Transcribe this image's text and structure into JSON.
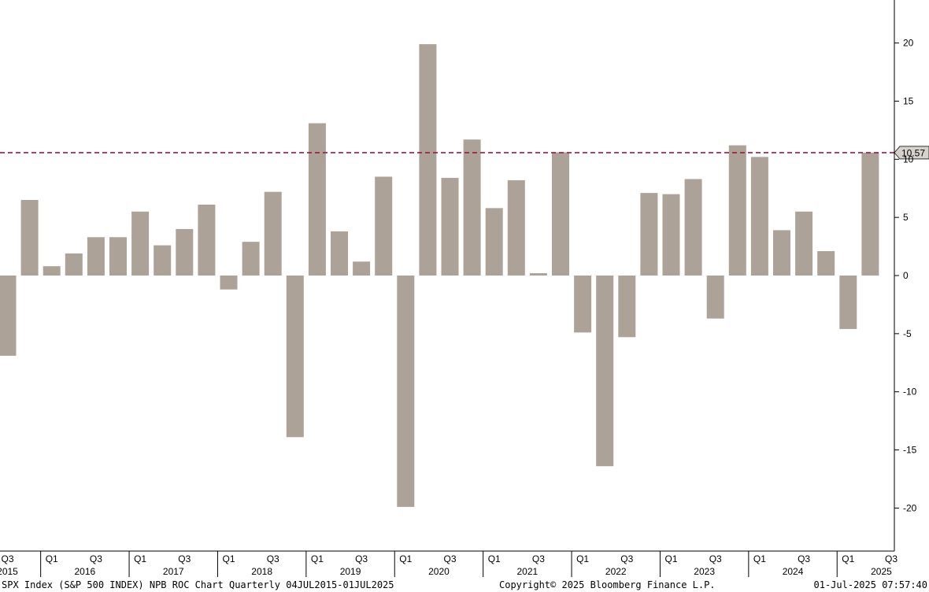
{
  "chart_data": {
    "type": "bar",
    "categories": [
      "Q3 2015",
      "Q4 2015",
      "Q1 2016",
      "Q2 2016",
      "Q3 2016",
      "Q4 2016",
      "Q1 2017",
      "Q2 2017",
      "Q3 2017",
      "Q4 2017",
      "Q1 2018",
      "Q2 2018",
      "Q3 2018",
      "Q4 2018",
      "Q1 2019",
      "Q2 2019",
      "Q3 2019",
      "Q4 2019",
      "Q1 2020",
      "Q2 2020",
      "Q3 2020",
      "Q4 2020",
      "Q1 2021",
      "Q2 2021",
      "Q3 2021",
      "Q4 2021",
      "Q1 2022",
      "Q2 2022",
      "Q3 2022",
      "Q4 2022",
      "Q1 2023",
      "Q2 2023",
      "Q3 2023",
      "Q4 2023",
      "Q1 2024",
      "Q2 2024",
      "Q3 2024",
      "Q4 2024",
      "Q1 2025",
      "Q2 2025"
    ],
    "values": [
      -6.9,
      6.5,
      0.8,
      1.9,
      3.3,
      3.3,
      5.5,
      2.6,
      4.0,
      6.1,
      -1.2,
      2.9,
      7.2,
      -13.9,
      13.1,
      3.8,
      1.2,
      8.5,
      -19.9,
      19.9,
      8.4,
      11.7,
      5.8,
      8.2,
      0.2,
      10.6,
      -4.9,
      -16.4,
      -5.3,
      7.1,
      7.0,
      8.3,
      -3.7,
      11.2,
      10.2,
      3.9,
      5.5,
      2.1,
      -4.6,
      10.57
    ],
    "bar_color": "#ACA297",
    "reference_line": {
      "value": 10.57,
      "label": "10.57",
      "color": "#A0183E"
    },
    "ylim": [
      -23.7,
      23.7
    ],
    "y_ticks": [
      -20,
      -15,
      -10,
      -5,
      0,
      5,
      10,
      15,
      20
    ],
    "x_tick_labels": [
      {
        "index": 0,
        "quarter": "Q3",
        "year": "2015"
      },
      {
        "index": 2,
        "quarter": "Q1",
        "year": ""
      },
      {
        "index": 4,
        "quarter": "Q3",
        "year": ""
      },
      {
        "index": 6,
        "quarter": "Q1",
        "year": ""
      },
      {
        "index": 8,
        "quarter": "Q3",
        "year": ""
      },
      {
        "index": 10,
        "quarter": "Q1",
        "year": ""
      },
      {
        "index": 12,
        "quarter": "Q3",
        "year": ""
      },
      {
        "index": 14,
        "quarter": "Q1",
        "year": ""
      },
      {
        "index": 16,
        "quarter": "Q3",
        "year": ""
      },
      {
        "index": 18,
        "quarter": "Q1",
        "year": ""
      },
      {
        "index": 20,
        "quarter": "Q3",
        "year": ""
      },
      {
        "index": 22,
        "quarter": "Q1",
        "year": ""
      },
      {
        "index": 24,
        "quarter": "Q3",
        "year": ""
      },
      {
        "index": 26,
        "quarter": "Q1",
        "year": ""
      },
      {
        "index": 28,
        "quarter": "Q3",
        "year": ""
      },
      {
        "index": 30,
        "quarter": "Q1",
        "year": ""
      },
      {
        "index": 32,
        "quarter": "Q3",
        "year": ""
      },
      {
        "index": 34,
        "quarter": "Q1",
        "year": ""
      },
      {
        "index": 36,
        "quarter": "Q3",
        "year": ""
      },
      {
        "index": 38,
        "quarter": "Q1",
        "year": ""
      },
      {
        "index": 40,
        "quarter": "Q3",
        "year": ""
      }
    ],
    "year_labels": [
      {
        "year": "2016",
        "center_index": 3.5
      },
      {
        "year": "2017",
        "center_index": 7.5
      },
      {
        "year": "2018",
        "center_index": 11.5
      },
      {
        "year": "2019",
        "center_index": 15.5
      },
      {
        "year": "2020",
        "center_index": 19.5
      },
      {
        "year": "2021",
        "center_index": 23.5
      },
      {
        "year": "2022",
        "center_index": 27.5
      },
      {
        "year": "2023",
        "center_index": 31.5
      },
      {
        "year": "2024",
        "center_index": 35.5
      },
      {
        "year": "2025",
        "center_index": 39.5
      }
    ],
    "year_boundaries": [
      1.5,
      5.5,
      9.5,
      13.5,
      17.5,
      21.5,
      25.5,
      29.5,
      33.5,
      37.5
    ]
  },
  "footer": {
    "left": "SPX Index (S&P 500 INDEX) NPB ROC Chart  Quarterly 04JUL2015-01JUL2025",
    "center": "Copyright© 2025 Bloomberg Finance L.P.",
    "right": "01-Jul-2025 07:57:40"
  }
}
